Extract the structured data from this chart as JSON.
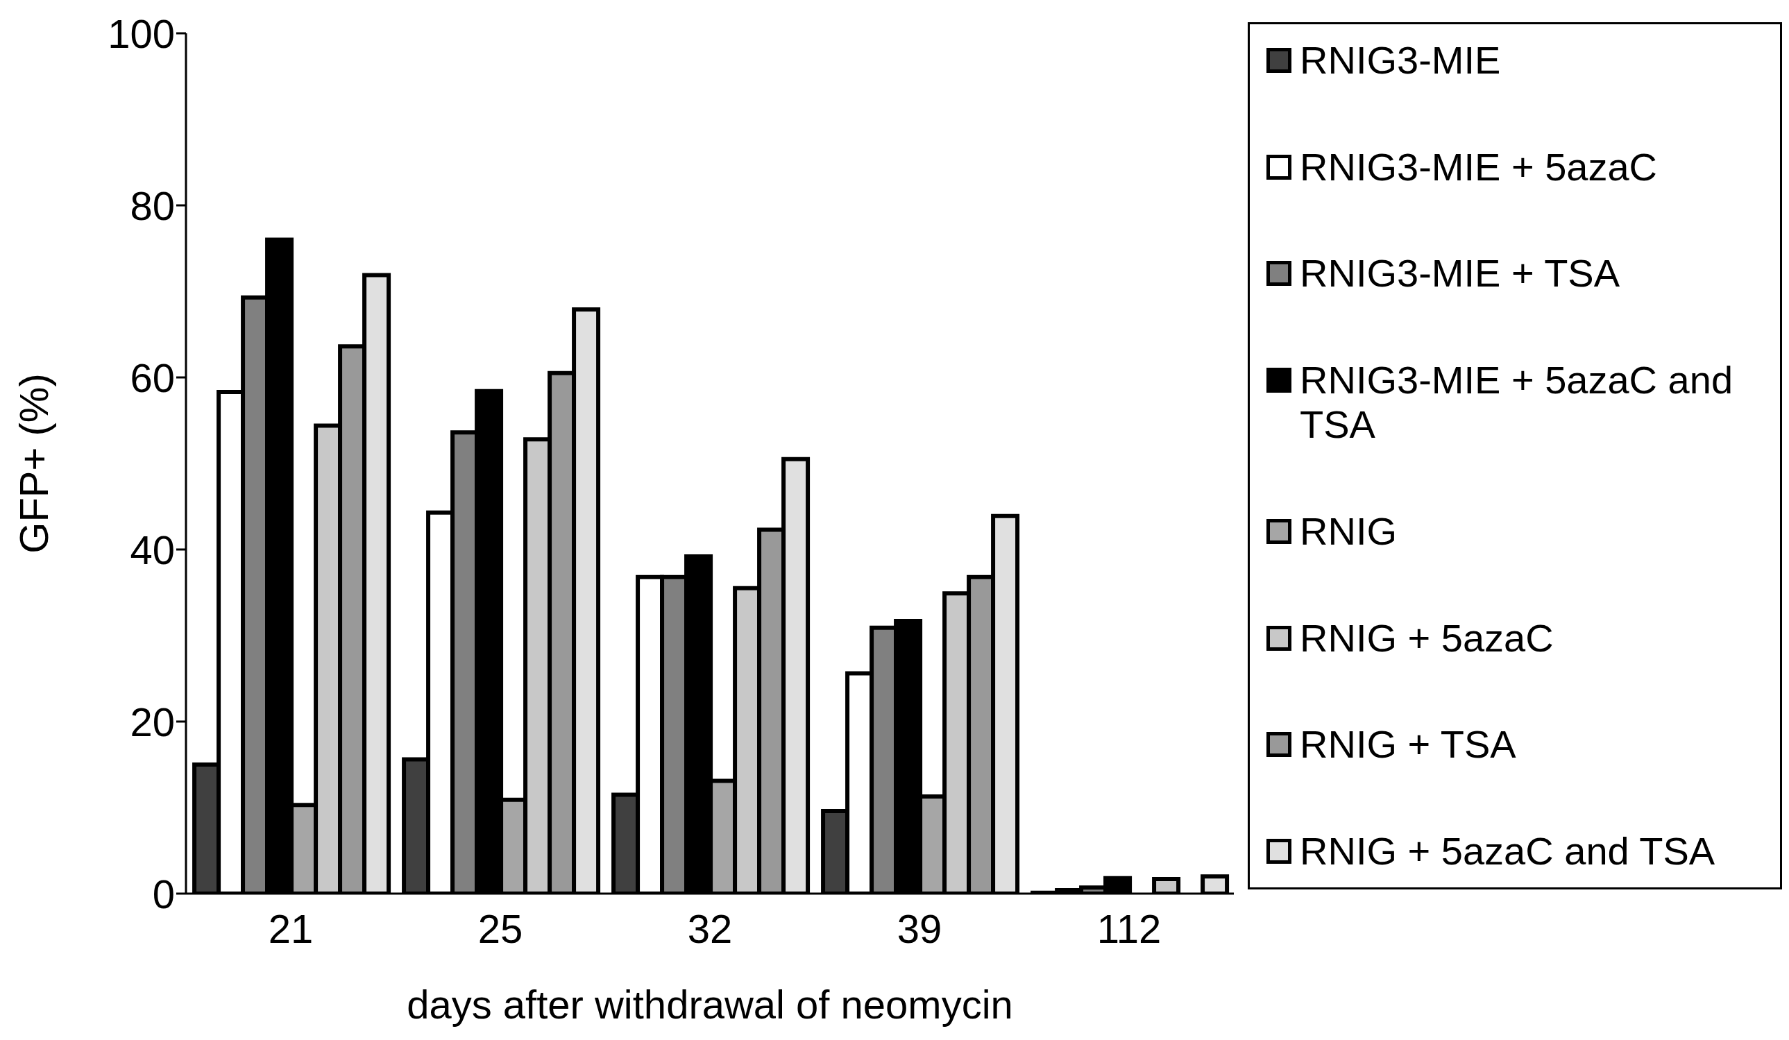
{
  "chart_data": {
    "type": "bar",
    "xlabel": "days after withdrawal of neomycin",
    "ylabel": "GFP+ (%)",
    "categories": [
      "21",
      "25",
      "32",
      "39",
      "112"
    ],
    "ylim": [
      0,
      100
    ],
    "yticks": [
      0,
      20,
      40,
      60,
      80,
      100
    ],
    "grid": false,
    "legend": "right",
    "series": [
      {
        "name": "RNIG3-MIE",
        "color": "#404040",
        "values": [
          15,
          15.6,
          11.5,
          9.6,
          0.1
        ]
      },
      {
        "name": "RNIG3-MIE + 5azaC",
        "color": "#ffffff",
        "values": [
          58.3,
          44.3,
          36.8,
          25.6,
          0.4
        ]
      },
      {
        "name": "RNIG3-MIE + TSA",
        "color": "#808080",
        "values": [
          69.3,
          53.6,
          36.8,
          30.9,
          0.7
        ]
      },
      {
        "name": "RNIG3-MIE + 5azaC and TSA",
        "color": "#000000",
        "values": [
          76,
          58.4,
          39.2,
          31.7,
          1.8
        ]
      },
      {
        "name": "RNIG",
        "color": "#a6a6a6",
        "values": [
          10.3,
          10.9,
          13.1,
          11.3,
          0
        ]
      },
      {
        "name": "RNIG + 5azaC",
        "color": "#c8c8c8",
        "values": [
          54.4,
          52.8,
          35.5,
          34.9,
          1.7
        ]
      },
      {
        "name": "RNIG + TSA",
        "color": "#999999",
        "values": [
          63.6,
          60.5,
          42.3,
          36.8,
          0
        ]
      },
      {
        "name": "RNIG + 5azaC and TSA",
        "color": "#e0e0e0",
        "values": [
          71.9,
          67.9,
          50.5,
          43.9,
          2
        ]
      }
    ]
  }
}
